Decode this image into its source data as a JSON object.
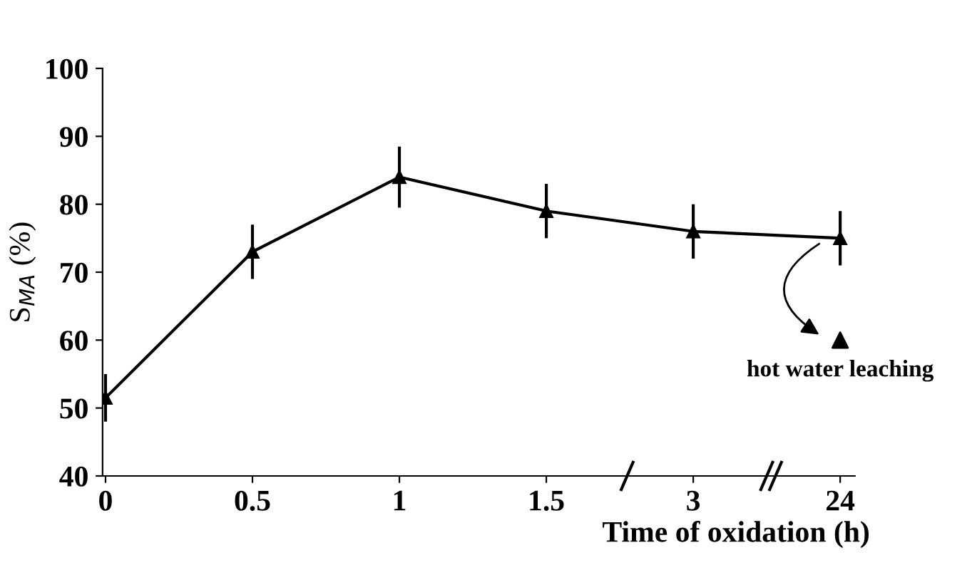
{
  "chart_data": {
    "type": "line",
    "xlabel": "Time of oxidation (h)",
    "ylabel": "S$_{MA}$ (%)",
    "categories": [
      "0",
      "0.5",
      "1",
      "1.5",
      "3",
      "24"
    ],
    "series": [
      {
        "color": "#000000",
        "values": [
          51.5,
          73,
          84,
          79,
          76,
          75
        ],
        "errors": [
          3.5,
          4,
          4.5,
          4,
          4,
          4
        ],
        "marker": "triangle"
      },
      {
        "type": "scatter",
        "color": "#000000",
        "x": [
          "24"
        ],
        "values": [
          60
        ],
        "marker": "triangle"
      }
    ],
    "annotations": [
      {
        "text": "hot water leaching",
        "x": "24",
        "y": 60
      }
    ],
    "ylim": [
      40,
      100
    ],
    "yticks": [
      40,
      50,
      60,
      70,
      80,
      90,
      100
    ],
    "grid": false,
    "legend": false
  }
}
